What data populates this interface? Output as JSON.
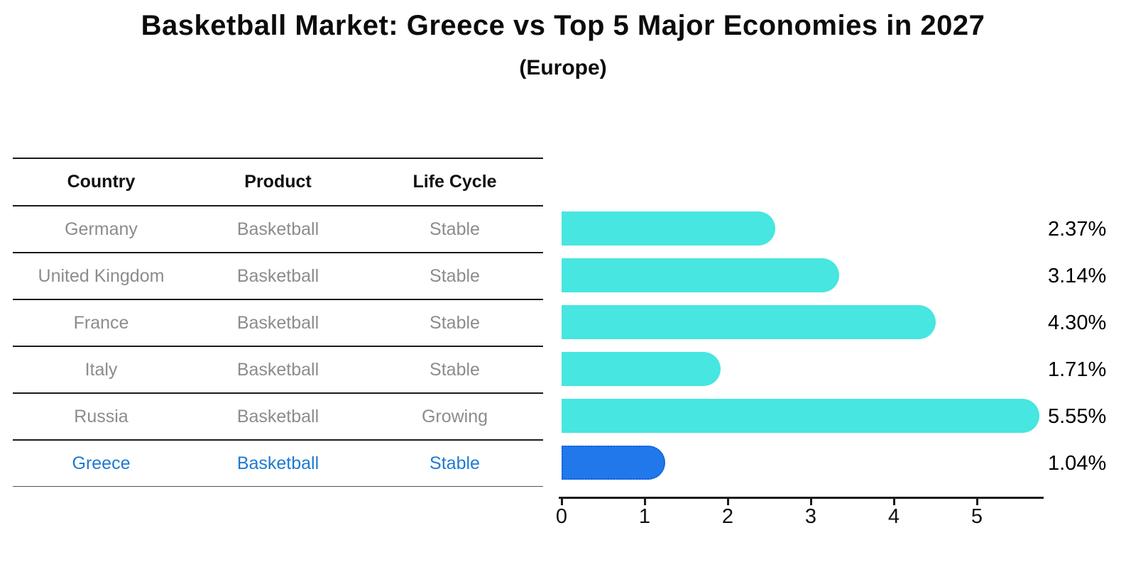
{
  "title": "Basketball Market: Greece vs Top 5 Major Economies in 2027",
  "subtitle": "(Europe)",
  "table": {
    "headers": [
      "Country",
      "Product",
      "Life Cycle"
    ],
    "rows": [
      {
        "country": "Germany",
        "product": "Basketball",
        "life_cycle": "Stable",
        "highlight": false
      },
      {
        "country": "United Kingdom",
        "product": "Basketball",
        "life_cycle": "Stable",
        "highlight": false
      },
      {
        "country": "France",
        "product": "Basketball",
        "life_cycle": "Stable",
        "highlight": false
      },
      {
        "country": "Italy",
        "product": "Basketball",
        "life_cycle": "Stable",
        "highlight": false
      },
      {
        "country": "Russia",
        "product": "Basketball",
        "life_cycle": "Growing",
        "highlight": false
      },
      {
        "country": "Greece",
        "product": "Basketball",
        "life_cycle": "Stable",
        "highlight": true
      }
    ]
  },
  "chart_data": {
    "type": "bar",
    "orientation": "horizontal",
    "title": "Basketball Market: Greece vs Top 5 Major Economies in 2027 (Europe)",
    "categories": [
      "Germany",
      "United Kingdom",
      "France",
      "Italy",
      "Russia",
      "Greece"
    ],
    "values": [
      2.37,
      3.14,
      4.3,
      1.71,
      5.55,
      1.04
    ],
    "value_labels": [
      "2.37%",
      "3.14%",
      "4.30%",
      "1.71%",
      "5.55%",
      "1.04%"
    ],
    "xlabel": "",
    "ylabel": "",
    "x_ticks": [
      "0",
      "1",
      "2",
      "3",
      "4",
      "5"
    ],
    "xlim": [
      0,
      5.8
    ],
    "grid": false,
    "legend": "none",
    "bar_color": "#47e6e0",
    "highlight_color": "#2178ea",
    "highlight_index": 5
  }
}
